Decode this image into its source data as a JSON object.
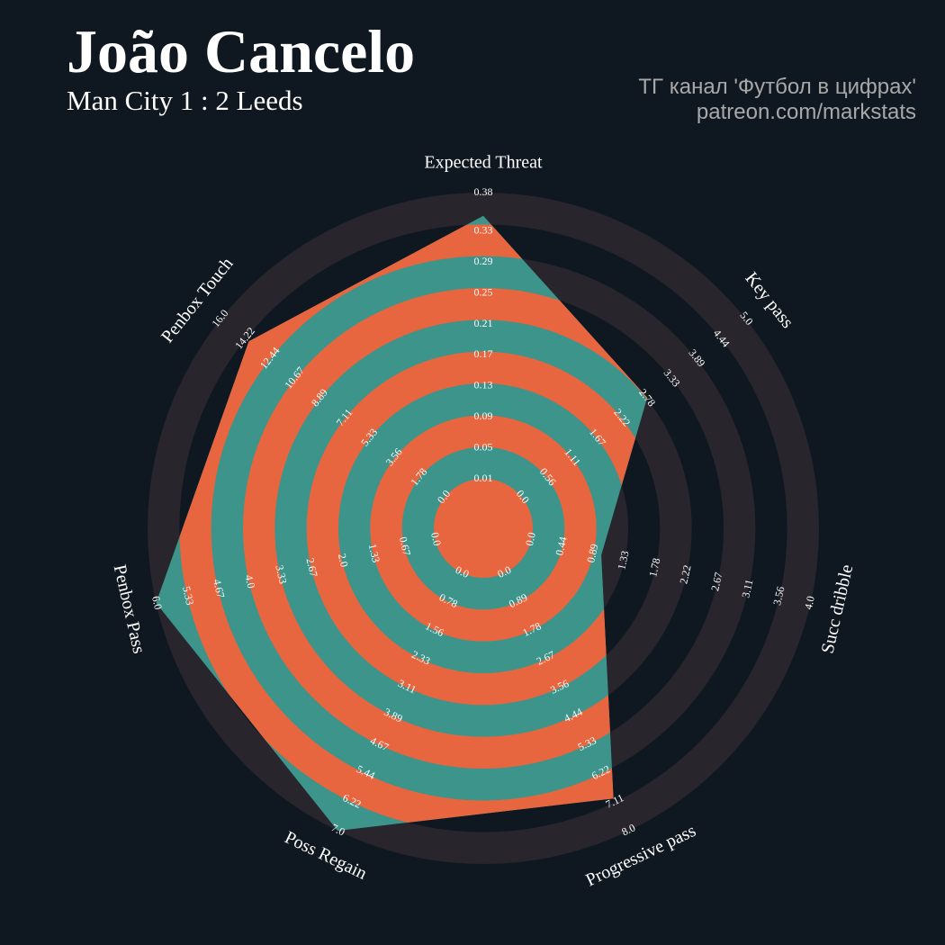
{
  "chart_data": {
    "type": "radar",
    "title": "João Cancelo",
    "subtitle": "Man City 1 : 2 Leeds",
    "credits": [
      "ТГ канал 'Футбол в цифрах'",
      "patreon.com/markstats"
    ],
    "axes": [
      {
        "name": "Expected Threat",
        "lim": [
          0.01,
          0.38
        ],
        "ticks": [
          0.01,
          0.05,
          0.09,
          0.13,
          0.17,
          0.21,
          0.25,
          0.29,
          0.33,
          0.38
        ]
      },
      {
        "name": "Key pass",
        "lim": [
          0,
          5
        ],
        "ticks": [
          {
            "value": 0,
            "label": "0.0"
          },
          0.56,
          1.11,
          1.67,
          2.22,
          2.78,
          3.33,
          3.89,
          4.44,
          {
            "value": 5,
            "label": "5.0"
          }
        ]
      },
      {
        "name": "Succ dribble",
        "lim": [
          0,
          4
        ],
        "ticks": [
          {
            "value": 0,
            "label": "0.0"
          },
          0.44,
          0.89,
          1.33,
          1.78,
          2.22,
          2.67,
          3.11,
          3.56,
          {
            "value": 4,
            "label": "4.0"
          }
        ]
      },
      {
        "name": "Progressive pass",
        "lim": [
          0,
          8
        ],
        "ticks": [
          {
            "value": 0,
            "label": "0.0"
          },
          0.89,
          1.78,
          2.67,
          3.56,
          4.44,
          5.33,
          6.22,
          7.11,
          {
            "value": 8,
            "label": "8.0"
          }
        ]
      },
      {
        "name": "Poss Regain",
        "lim": [
          0,
          7
        ],
        "ticks": [
          {
            "value": 0,
            "label": "0.0"
          },
          0.78,
          1.56,
          2.33,
          3.11,
          3.89,
          4.67,
          5.44,
          6.22,
          {
            "value": 7,
            "label": "7.0"
          }
        ]
      },
      {
        "name": "Penbox Pass",
        "lim": [
          0,
          6
        ],
        "ticks": [
          {
            "value": 0,
            "label": "0.0"
          },
          0.67,
          1.33,
          {
            "value": 2,
            "label": "2.0"
          },
          2.67,
          3.33,
          {
            "value": 4,
            "label": "4.0"
          },
          4.67,
          5.33,
          {
            "value": 6,
            "label": "6.0"
          }
        ]
      },
      {
        "name": "Penbox Touch",
        "lim": [
          0,
          16
        ],
        "ticks": [
          {
            "value": 0,
            "label": "0.0"
          },
          1.78,
          3.56,
          5.33,
          7.11,
          8.89,
          10.67,
          12.44,
          14.22,
          {
            "value": 16,
            "label": "16.0"
          }
        ]
      }
    ],
    "values": [
      0.35,
      2.8,
      1,
      7,
      7,
      6,
      14
    ],
    "fill_colors": [
      "#3c948b",
      "#e8663f"
    ],
    "ring_color": "#28252c"
  }
}
